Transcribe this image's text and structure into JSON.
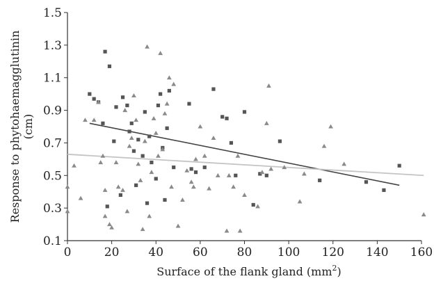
{
  "chart_data": {
    "type": "scatter",
    "xlabel": "Surface of the flank gland (mm",
    "xlabel_sup": "2",
    "xlabel_end": ")",
    "ylabel_line1": "Response to phytohaemagglutinin",
    "ylabel_line2": "(cm)",
    "xlim": [
      0,
      160
    ],
    "ylim": [
      0.1,
      1.5
    ],
    "x_ticks": [
      "0",
      "20",
      "40",
      "60",
      "80",
      "100",
      "120",
      "140",
      "160"
    ],
    "y_ticks": [
      "0.1",
      "0.3",
      "0.5",
      "0.7",
      "0.9",
      "1.1",
      "1.3",
      "1.5"
    ],
    "grid": false,
    "colors": {
      "squares": "#555555",
      "triangles": "#8a8a8a",
      "trend_dark": "#444444",
      "trend_light": "#c4c4c4"
    },
    "series": [
      {
        "marker": "square",
        "points": [
          [
            10,
            1.0
          ],
          [
            12,
            0.97
          ],
          [
            14,
            0.95
          ],
          [
            16,
            0.82
          ],
          [
            17,
            1.26
          ],
          [
            18,
            0.31
          ],
          [
            19,
            1.17
          ],
          [
            21,
            0.71
          ],
          [
            22,
            0.92
          ],
          [
            24,
            0.38
          ],
          [
            25,
            0.98
          ],
          [
            27,
            0.93
          ],
          [
            28,
            0.77
          ],
          [
            29,
            0.82
          ],
          [
            30,
            0.65
          ],
          [
            31,
            0.44
          ],
          [
            32,
            0.72
          ],
          [
            34,
            0.62
          ],
          [
            35,
            0.89
          ],
          [
            36,
            0.33
          ],
          [
            37,
            0.74
          ],
          [
            38,
            0.58
          ],
          [
            40,
            0.48
          ],
          [
            41,
            0.93
          ],
          [
            42,
            1.0
          ],
          [
            43,
            0.67
          ],
          [
            44,
            0.35
          ],
          [
            45,
            0.79
          ],
          [
            46,
            1.02
          ],
          [
            48,
            0.55
          ],
          [
            55,
            0.94
          ],
          [
            56,
            0.54
          ],
          [
            58,
            0.52
          ],
          [
            62,
            0.55
          ],
          [
            66,
            1.03
          ],
          [
            70,
            0.86
          ],
          [
            72,
            0.85
          ],
          [
            74,
            0.7
          ],
          [
            76,
            0.5
          ],
          [
            80,
            0.89
          ],
          [
            84,
            0.32
          ],
          [
            87,
            0.51
          ],
          [
            90,
            0.5
          ],
          [
            96,
            0.71
          ],
          [
            114,
            0.47
          ],
          [
            135,
            0.46
          ],
          [
            143,
            0.41
          ],
          [
            150,
            0.56
          ]
        ]
      },
      {
        "marker": "triangle",
        "points": [
          [
            0,
            0.43
          ],
          [
            0,
            0.28
          ],
          [
            3,
            0.56
          ],
          [
            6,
            0.36
          ],
          [
            8,
            0.84
          ],
          [
            12,
            0.84
          ],
          [
            14,
            0.95
          ],
          [
            15,
            0.58
          ],
          [
            16,
            0.62
          ],
          [
            17,
            0.25
          ],
          [
            17,
            0.41
          ],
          [
            19,
            0.2
          ],
          [
            20,
            0.18
          ],
          [
            22,
            0.58
          ],
          [
            23,
            0.43
          ],
          [
            25,
            0.41
          ],
          [
            26,
            0.9
          ],
          [
            27,
            0.28
          ],
          [
            28,
            0.68
          ],
          [
            29,
            0.73
          ],
          [
            30,
            0.99
          ],
          [
            31,
            0.84
          ],
          [
            32,
            0.57
          ],
          [
            33,
            0.47
          ],
          [
            34,
            0.17
          ],
          [
            35,
            0.71
          ],
          [
            36,
            1.29
          ],
          [
            37,
            0.25
          ],
          [
            38,
            0.52
          ],
          [
            39,
            0.85
          ],
          [
            40,
            0.76
          ],
          [
            41,
            0.62
          ],
          [
            42,
            1.25
          ],
          [
            43,
            0.66
          ],
          [
            44,
            0.88
          ],
          [
            45,
            0.94
          ],
          [
            46,
            1.1
          ],
          [
            47,
            0.43
          ],
          [
            48,
            1.06
          ],
          [
            50,
            0.19
          ],
          [
            52,
            0.35
          ],
          [
            54,
            0.53
          ],
          [
            56,
            0.46
          ],
          [
            57,
            0.43
          ],
          [
            58,
            0.6
          ],
          [
            60,
            0.8
          ],
          [
            62,
            0.62
          ],
          [
            64,
            0.42
          ],
          [
            66,
            0.73
          ],
          [
            68,
            0.5
          ],
          [
            72,
            0.16
          ],
          [
            73,
            0.5
          ],
          [
            75,
            0.43
          ],
          [
            77,
            0.62
          ],
          [
            78,
            0.16
          ],
          [
            80,
            0.38
          ],
          [
            86,
            0.31
          ],
          [
            88,
            0.52
          ],
          [
            90,
            0.82
          ],
          [
            91,
            1.05
          ],
          [
            92,
            0.54
          ],
          [
            98,
            0.55
          ],
          [
            105,
            0.34
          ],
          [
            107,
            0.51
          ],
          [
            116,
            0.68
          ],
          [
            119,
            0.8
          ],
          [
            125,
            0.57
          ],
          [
            161,
            0.26
          ]
        ]
      }
    ],
    "trend_lines": [
      {
        "style": "dark",
        "x": [
          10,
          150
        ],
        "y": [
          0.82,
          0.44
        ]
      },
      {
        "style": "light",
        "x": [
          0,
          161
        ],
        "y": [
          0.63,
          0.5
        ]
      }
    ]
  }
}
